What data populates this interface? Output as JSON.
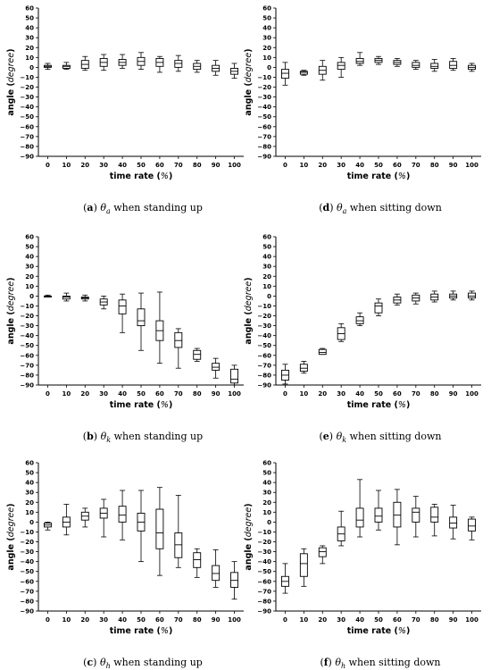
{
  "chart_data": [
    {
      "type": "boxplot",
      "panel": "(a)",
      "caption": {
        "letter": "a",
        "symbol": "θ",
        "subscript": "a",
        "text": "when standing up"
      },
      "xlabel": "time rate (%)",
      "ylabel": "angle (degree)",
      "ylim": [
        -90,
        60
      ],
      "categories": [
        "0",
        "10",
        "20",
        "30",
        "40",
        "50",
        "60",
        "70",
        "80",
        "90",
        "100"
      ],
      "boxes": [
        {
          "min": -2,
          "q1": 0,
          "median": 1,
          "q3": 2,
          "max": 4
        },
        {
          "min": -2,
          "q1": -1,
          "median": 1,
          "q3": 2,
          "max": 5
        },
        {
          "min": -3,
          "q1": -1,
          "median": 3,
          "q3": 7,
          "max": 11
        },
        {
          "min": -3,
          "q1": 1,
          "median": 5,
          "q3": 9,
          "max": 13
        },
        {
          "min": -1,
          "q1": 2,
          "median": 5,
          "q3": 8,
          "max": 13
        },
        {
          "min": -2,
          "q1": 2,
          "median": 6,
          "q3": 10,
          "max": 15
        },
        {
          "min": -5,
          "q1": 1,
          "median": 5,
          "q3": 9,
          "max": 11
        },
        {
          "min": -4,
          "q1": 0,
          "median": 4,
          "q3": 7,
          "max": 12
        },
        {
          "min": -5,
          "q1": -2,
          "median": 1,
          "q3": 4,
          "max": 7
        },
        {
          "min": -8,
          "q1": -4,
          "median": -1,
          "q3": 2,
          "max": 7
        },
        {
          "min": -11,
          "q1": -7,
          "median": -4,
          "q3": -1,
          "max": 4
        }
      ]
    },
    {
      "type": "boxplot",
      "panel": "(d)",
      "caption": {
        "letter": "d",
        "symbol": "θ",
        "subscript": "a",
        "text": "when sitting down"
      },
      "xlabel": "time rate (%)",
      "ylabel": "angle (degree)",
      "ylim": [
        -90,
        60
      ],
      "categories": [
        "0",
        "10",
        "20",
        "30",
        "40",
        "50",
        "60",
        "70",
        "80",
        "90",
        "100"
      ],
      "boxes": [
        {
          "min": -18,
          "q1": -11,
          "median": -6,
          "q3": -2,
          "max": 5
        },
        {
          "min": -8,
          "q1": -7,
          "median": -5,
          "q3": -4,
          "max": -3
        },
        {
          "min": -13,
          "q1": -7,
          "median": -3,
          "q3": 1,
          "max": 7
        },
        {
          "min": -10,
          "q1": -2,
          "median": 2,
          "q3": 5,
          "max": 10
        },
        {
          "min": 2,
          "q1": 4,
          "median": 6,
          "q3": 9,
          "max": 15
        },
        {
          "min": 3,
          "q1": 5,
          "median": 7,
          "q3": 9,
          "max": 11
        },
        {
          "min": 1,
          "q1": 3,
          "median": 5,
          "q3": 7,
          "max": 9
        },
        {
          "min": -2,
          "q1": 0,
          "median": 2,
          "q3": 5,
          "max": 7
        },
        {
          "min": -4,
          "q1": -1,
          "median": 1,
          "q3": 4,
          "max": 8
        },
        {
          "min": -3,
          "q1": -1,
          "median": 2,
          "q3": 6,
          "max": 9
        },
        {
          "min": -4,
          "q1": -2,
          "median": 0,
          "q3": 2,
          "max": 4
        }
      ]
    },
    {
      "type": "boxplot",
      "panel": "(b)",
      "caption": {
        "letter": "b",
        "symbol": "θ",
        "subscript": "k",
        "text": "when standing up"
      },
      "xlabel": "time rate (%)",
      "ylabel": "angle (degree)",
      "ylim": [
        -90,
        60
      ],
      "categories": [
        "0",
        "10",
        "20",
        "30",
        "40",
        "50",
        "60",
        "70",
        "80",
        "90",
        "100"
      ],
      "boxes": [
        {
          "min": -1,
          "q1": -1,
          "median": 0,
          "q3": 0,
          "max": 1
        },
        {
          "min": -5,
          "q1": -3,
          "median": -1,
          "q3": 0,
          "max": 3
        },
        {
          "min": -5,
          "q1": -3,
          "median": -2,
          "q3": -1,
          "max": 1
        },
        {
          "min": -13,
          "q1": -9,
          "median": -6,
          "q3": -3,
          "max": 0
        },
        {
          "min": -37,
          "q1": -18,
          "median": -10,
          "q3": -4,
          "max": 2
        },
        {
          "min": -55,
          "q1": -30,
          "median": -25,
          "q3": -13,
          "max": 3
        },
        {
          "min": -68,
          "q1": -45,
          "median": -35,
          "q3": -25,
          "max": 4
        },
        {
          "min": -73,
          "q1": -52,
          "median": -45,
          "q3": -37,
          "max": -33
        },
        {
          "min": -66,
          "q1": -64,
          "median": -59,
          "q3": -55,
          "max": -53
        },
        {
          "min": -83,
          "q1": -75,
          "median": -72,
          "q3": -68,
          "max": -63
        },
        {
          "min": -90,
          "q1": -88,
          "median": -84,
          "q3": -74,
          "max": -70
        }
      ]
    },
    {
      "type": "boxplot",
      "panel": "(e)",
      "caption": {
        "letter": "e",
        "symbol": "θ",
        "subscript": "k",
        "text": "when sitting down"
      },
      "xlabel": "time rate (%)",
      "ylabel": "angle (degree)",
      "ylim": [
        -90,
        60
      ],
      "categories": [
        "0",
        "10",
        "20",
        "30",
        "40",
        "50",
        "60",
        "70",
        "80",
        "90",
        "100"
      ],
      "boxes": [
        {
          "min": -89,
          "q1": -85,
          "median": -80,
          "q3": -75,
          "max": -69
        },
        {
          "min": -78,
          "q1": -76,
          "median": -73,
          "q3": -69,
          "max": -66
        },
        {
          "min": -59,
          "q1": -59,
          "median": -57,
          "q3": -54,
          "max": -53
        },
        {
          "min": -46,
          "q1": -44,
          "median": -38,
          "q3": -32,
          "max": -28
        },
        {
          "min": -30,
          "q1": -28,
          "median": -25,
          "q3": -21,
          "max": -17
        },
        {
          "min": -20,
          "q1": -17,
          "median": -10,
          "q3": -7,
          "max": -3
        },
        {
          "min": -9,
          "q1": -7,
          "median": -4,
          "q3": -1,
          "max": 2
        },
        {
          "min": -8,
          "q1": -5,
          "median": -2,
          "q3": 1,
          "max": 3
        },
        {
          "min": -6,
          "q1": -4,
          "median": -1,
          "q3": 2,
          "max": 5
        },
        {
          "min": -4,
          "q1": -2,
          "median": 0,
          "q3": 2,
          "max": 5
        },
        {
          "min": -4,
          "q1": -2,
          "median": 0,
          "q3": 3,
          "max": 5
        }
      ]
    },
    {
      "type": "boxplot",
      "panel": "(c)",
      "caption": {
        "letter": "c",
        "symbol": "θ",
        "subscript": "h",
        "text": "when standing up"
      },
      "xlabel": "time rate (%)",
      "ylabel": "angle (degree)",
      "ylim": [
        -90,
        60
      ],
      "categories": [
        "0",
        "10",
        "20",
        "30",
        "40",
        "50",
        "60",
        "70",
        "80",
        "90",
        "100"
      ],
      "boxes": [
        {
          "min": -8,
          "q1": -5,
          "median": -3,
          "q3": -1,
          "max": 0
        },
        {
          "min": -13,
          "q1": -5,
          "median": 0,
          "q3": 5,
          "max": 18
        },
        {
          "min": -5,
          "q1": 2,
          "median": 6,
          "q3": 10,
          "max": 14
        },
        {
          "min": -15,
          "q1": 4,
          "median": 9,
          "q3": 14,
          "max": 23
        },
        {
          "min": -18,
          "q1": 0,
          "median": 7,
          "q3": 16,
          "max": 32
        },
        {
          "min": -40,
          "q1": -9,
          "median": 0,
          "q3": 9,
          "max": 32
        },
        {
          "min": -54,
          "q1": -27,
          "median": -11,
          "q3": 13,
          "max": 35
        },
        {
          "min": -46,
          "q1": -36,
          "median": -23,
          "q3": -11,
          "max": 27
        },
        {
          "min": -56,
          "q1": -46,
          "median": -38,
          "q3": -31,
          "max": -27
        },
        {
          "min": -66,
          "q1": -59,
          "median": -52,
          "q3": -44,
          "max": -28
        },
        {
          "min": -78,
          "q1": -66,
          "median": -59,
          "q3": -51,
          "max": -40
        }
      ]
    },
    {
      "type": "boxplot",
      "panel": "(f)",
      "caption": {
        "letter": "f",
        "symbol": "θ",
        "subscript": "h",
        "text": "when sitting down"
      },
      "xlabel": "time rate (%)",
      "ylabel": "angle (degree)",
      "ylim": [
        -90,
        60
      ],
      "categories": [
        "0",
        "10",
        "20",
        "30",
        "40",
        "50",
        "60",
        "70",
        "80",
        "90",
        "100"
      ],
      "boxes": [
        {
          "min": -72,
          "q1": -65,
          "median": -60,
          "q3": -55,
          "max": -42
        },
        {
          "min": -65,
          "q1": -55,
          "median": -42,
          "q3": -32,
          "max": -27
        },
        {
          "min": -42,
          "q1": -35,
          "median": -30,
          "q3": -26,
          "max": -24
        },
        {
          "min": -24,
          "q1": -19,
          "median": -12,
          "q3": -5,
          "max": 11
        },
        {
          "min": -15,
          "q1": -5,
          "median": 2,
          "q3": 14,
          "max": 43
        },
        {
          "min": -8,
          "q1": 0,
          "median": 6,
          "q3": 14,
          "max": 32
        },
        {
          "min": -23,
          "q1": -5,
          "median": 7,
          "q3": 20,
          "max": 33
        },
        {
          "min": -15,
          "q1": 0,
          "median": 10,
          "q3": 14,
          "max": 26
        },
        {
          "min": -14,
          "q1": 0,
          "median": 5,
          "q3": 15,
          "max": 18
        },
        {
          "min": -17,
          "q1": -6,
          "median": -1,
          "q3": 5,
          "max": 17
        },
        {
          "min": -18,
          "q1": -9,
          "median": -4,
          "q3": 3,
          "max": 5
        }
      ]
    }
  ]
}
